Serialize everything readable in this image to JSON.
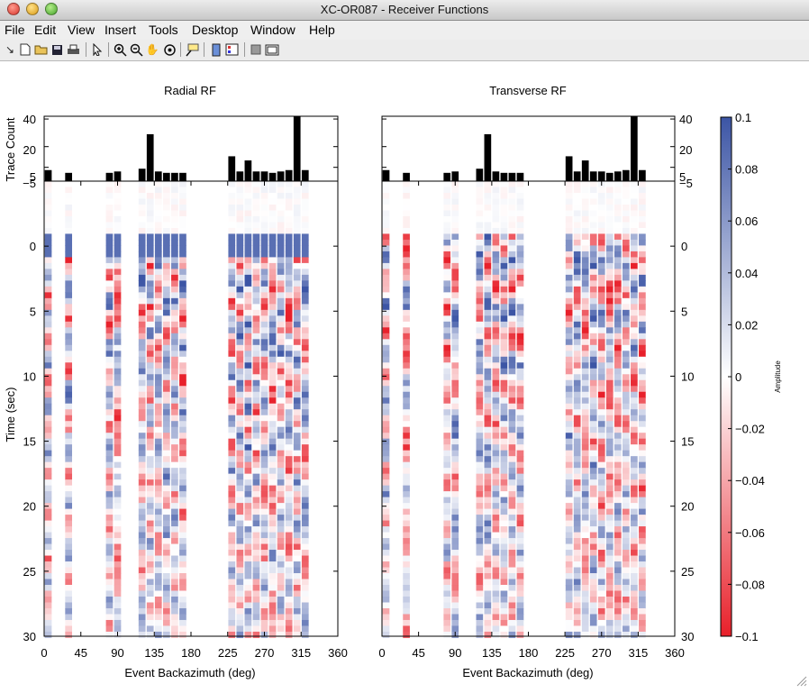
{
  "window": {
    "title": "XC-OR087 - Receiver Functions"
  },
  "menu": [
    "File",
    "Edit",
    "View",
    "Insert",
    "Tools",
    "Desktop",
    "Window",
    "Help"
  ],
  "toolbar": [
    "arrow-icon",
    "new-file-icon",
    "open-folder-icon",
    "save-icon",
    "print-icon",
    "select-pointer-icon",
    "zoom-in-icon",
    "zoom-out-icon",
    "pan-hand-icon",
    "rotate-3d-icon",
    "data-cursor-icon",
    "colorbar-icon",
    "legend-icon",
    "hide-plot-tools-icon",
    "show-plot-tools-icon"
  ],
  "chart_data": [
    {
      "type": "bar",
      "title": "Radial RF",
      "xlabel": "",
      "ylabel": "Trace Count",
      "yticks": [
        "40",
        "20",
        "5",
        "−5"
      ],
      "xlim": [
        0,
        360
      ],
      "ylim": [
        -5,
        42
      ],
      "x": [
        5,
        30,
        80,
        90,
        120,
        130,
        140,
        150,
        160,
        170,
        230,
        240,
        250,
        260,
        270,
        280,
        290,
        300,
        310,
        320
      ],
      "values": [
        3,
        1,
        1,
        2,
        4,
        29,
        2,
        1,
        1,
        1,
        13,
        2,
        10,
        2,
        2,
        1,
        2,
        3,
        42,
        3
      ]
    },
    {
      "type": "bar",
      "title": "Transverse RF",
      "xlabel": "",
      "ylabel": "",
      "yticks": [
        "40",
        "20",
        "5",
        "−5"
      ],
      "xlim": [
        0,
        360
      ],
      "ylim": [
        -5,
        42
      ],
      "x": [
        5,
        30,
        80,
        90,
        120,
        130,
        140,
        150,
        160,
        170,
        230,
        240,
        250,
        260,
        270,
        280,
        290,
        300,
        310,
        320
      ],
      "values": [
        3,
        1,
        1,
        2,
        4,
        29,
        2,
        1,
        1,
        1,
        13,
        2,
        10,
        2,
        2,
        1,
        2,
        3,
        42,
        3
      ]
    },
    {
      "type": "heatmap",
      "title": "",
      "xlabel": "Event Backazimuth (deg)",
      "ylabel": "Time (sec)",
      "xlim": [
        0,
        360
      ],
      "ylim": [
        -5,
        30
      ],
      "xticks": [
        "0",
        "45",
        "90",
        "135",
        "180",
        "225",
        "270",
        "315",
        "360"
      ],
      "yticks": [
        "0",
        "5",
        "10",
        "15",
        "20",
        "25",
        "30"
      ],
      "colormap": {
        "negative": "#e8202a",
        "zero": "#ffffff",
        "positive": "#3c55a5"
      }
    },
    {
      "type": "heatmap",
      "title": "",
      "xlabel": "Event Backazimuth (deg)",
      "ylabel": "",
      "xlim": [
        0,
        360
      ],
      "ylim": [
        -5,
        30
      ],
      "xticks": [
        "0",
        "45",
        "90",
        "135",
        "180",
        "225",
        "270",
        "315",
        "360"
      ],
      "yticks": [
        "0",
        "5",
        "10",
        "15",
        "20",
        "25",
        "30"
      ],
      "colormap": {
        "negative": "#e8202a",
        "zero": "#ffffff",
        "positive": "#3c55a5"
      }
    }
  ],
  "colorbar": {
    "label": "Amplitude",
    "range": [
      -0.1,
      0.1
    ],
    "ticks": [
      "0.1",
      "0.08",
      "0.06",
      "0.04",
      "0.02",
      "0",
      "−0.02",
      "−0.04",
      "−0.06",
      "−0.08",
      "−0.1"
    ]
  }
}
